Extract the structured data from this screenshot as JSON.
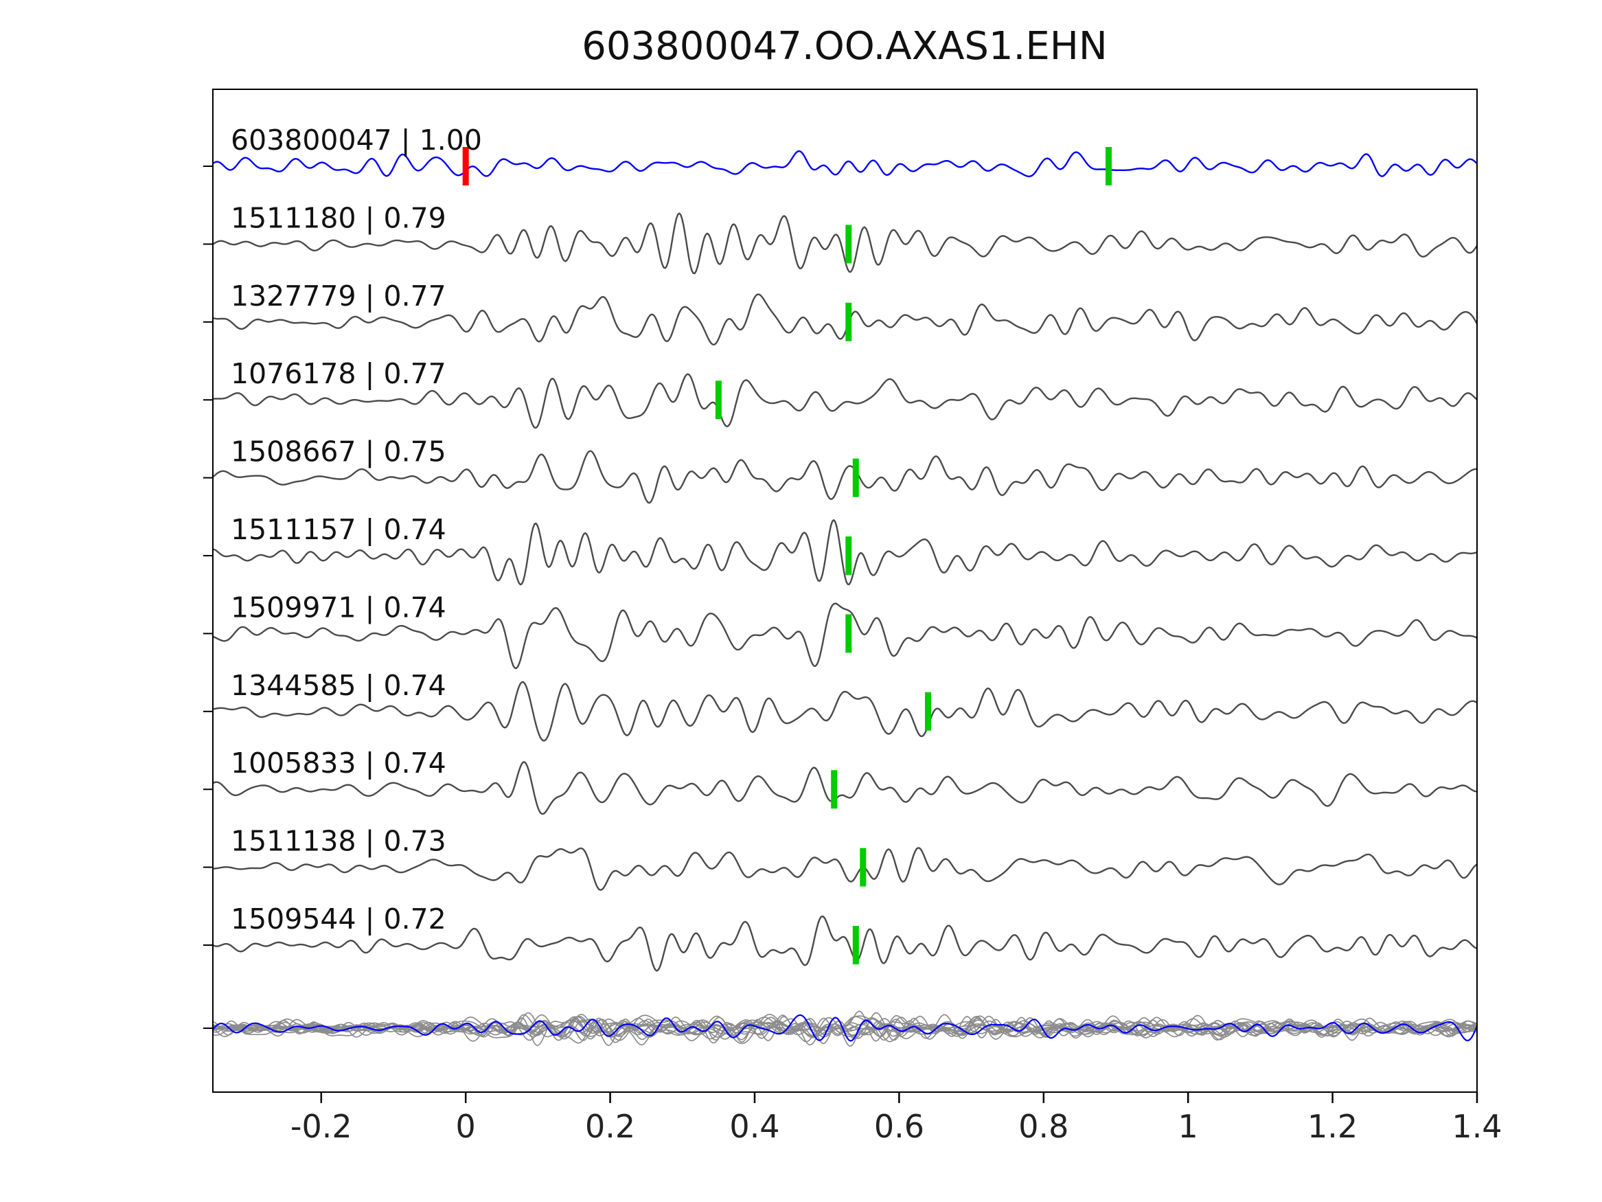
{
  "title": "603800047.OO.AXAS1.EHN",
  "colors": {
    "template": "#0000ff",
    "trace": "#4a4a4a",
    "stack_gray": "#8c8c8c",
    "pick_green": "#00cc00",
    "pick_red": "#ff0000",
    "axis": "#000000",
    "text": "#111111"
  },
  "chart_data": {
    "type": "line",
    "title": "603800047.OO.AXAS1.EHN",
    "xlabel": "",
    "ylabel": "",
    "xlim": [
      -0.35,
      1.4
    ],
    "x_ticks": [
      -0.2,
      0,
      0.2,
      0.4,
      0.6,
      0.8,
      1,
      1.2,
      1.4
    ],
    "x_tick_labels": [
      "-0.2",
      "0",
      "0.2",
      "0.4",
      "0.6",
      "0.8",
      "1",
      "1.2",
      "1.4"
    ],
    "grid": false,
    "legend": false,
    "description": "Template waveform (blue, top) compared against matched detections (gray rows) with cross-correlation values; green bars mark pick times, red bar marks template origin; bottom row overlays all detection traces (gray) with the template (blue).",
    "traces": [
      {
        "id": "603800047",
        "correlation": "1.00",
        "label": "603800047 | 1.00",
        "role": "template",
        "markers": [
          {
            "t": 0.0,
            "color": "#ff0000"
          },
          {
            "t": 0.89,
            "color": "#00cc00"
          }
        ]
      },
      {
        "id": "1511180",
        "correlation": "0.79",
        "label": "1511180 | 0.79",
        "role": "detection",
        "markers": [
          {
            "t": 0.53,
            "color": "#00cc00"
          }
        ]
      },
      {
        "id": "1327779",
        "correlation": "0.77",
        "label": "1327779 | 0.77",
        "role": "detection",
        "markers": [
          {
            "t": 0.53,
            "color": "#00cc00"
          }
        ]
      },
      {
        "id": "1076178",
        "correlation": "0.77",
        "label": "1076178 | 0.77",
        "role": "detection",
        "markers": [
          {
            "t": 0.35,
            "color": "#00cc00"
          }
        ]
      },
      {
        "id": "1508667",
        "correlation": "0.75",
        "label": "1508667 | 0.75",
        "role": "detection",
        "markers": [
          {
            "t": 0.54,
            "color": "#00cc00"
          }
        ]
      },
      {
        "id": "1511157",
        "correlation": "0.74",
        "label": "1511157 | 0.74",
        "role": "detection",
        "markers": [
          {
            "t": 0.53,
            "color": "#00cc00"
          }
        ]
      },
      {
        "id": "1509971",
        "correlation": "0.74",
        "label": "1509971 | 0.74",
        "role": "detection",
        "markers": [
          {
            "t": 0.53,
            "color": "#00cc00"
          }
        ]
      },
      {
        "id": "1344585",
        "correlation": "0.74",
        "label": "1344585 | 0.74",
        "role": "detection",
        "markers": [
          {
            "t": 0.64,
            "color": "#00cc00"
          }
        ]
      },
      {
        "id": "1005833",
        "correlation": "0.74",
        "label": "1005833 | 0.74",
        "role": "detection",
        "markers": [
          {
            "t": 0.51,
            "color": "#00cc00"
          }
        ]
      },
      {
        "id": "1511138",
        "correlation": "0.73",
        "label": "1511138 | 0.73",
        "role": "detection",
        "markers": [
          {
            "t": 0.55,
            "color": "#00cc00"
          }
        ]
      },
      {
        "id": "1509544",
        "correlation": "0.72",
        "label": "1509544 | 0.72",
        "role": "detection",
        "markers": [
          {
            "t": 0.54,
            "color": "#00cc00"
          }
        ]
      }
    ],
    "stack_overlay": {
      "gray_trace_count": 14,
      "has_blue_trace": true
    }
  }
}
